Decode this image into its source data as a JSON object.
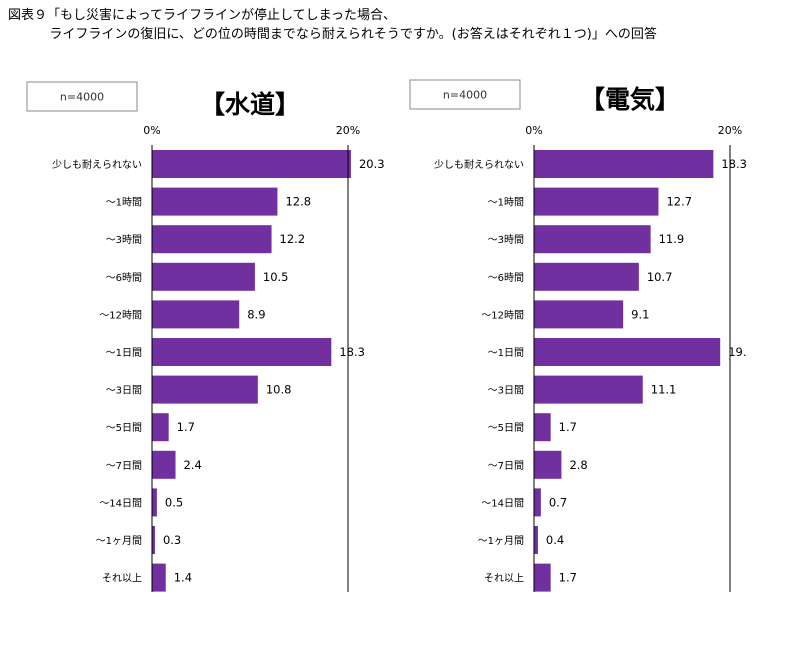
{
  "figure_title_lines": [
    "図表９「もし災害によってライフラインが停止してしまった場合、",
    "          ライフラインの復旧に、どの位の時間までなら耐えられそうですか。(お答えはそれぞれ１つ)」への回答"
  ],
  "colors": {
    "bar": "#7030A0",
    "axis": "#000000",
    "box_border": "#888888"
  },
  "chart_data": [
    {
      "type": "bar",
      "orientation": "horizontal",
      "title": "【水道】",
      "sample_label": "n=4000",
      "xlim": [
        0,
        20
      ],
      "ticks": [
        0,
        20
      ],
      "tick_labels": [
        "0%",
        "20%"
      ],
      "categories": [
        "少しも耐えられない",
        "～1時間",
        "～3時間",
        "～6時間",
        "～12時間",
        "～1日間",
        "～3日間",
        "～5日間",
        "～7日間",
        "～14日間",
        "～1ヶ月間",
        "それ以上"
      ],
      "values": [
        20.3,
        12.8,
        12.2,
        10.5,
        8.9,
        18.3,
        10.8,
        1.7,
        2.4,
        0.5,
        0.3,
        1.4
      ],
      "value_labels": [
        "20.3",
        "12.8",
        "12.2",
        "10.5",
        "8.9",
        "18.3",
        "10.8",
        "1.7",
        "2.4",
        "0.5",
        "0.3",
        "1.4"
      ]
    },
    {
      "type": "bar",
      "orientation": "horizontal",
      "title": "【電気】",
      "sample_label": "n=4000",
      "xlim": [
        0,
        20
      ],
      "ticks": [
        0,
        20
      ],
      "tick_labels": [
        "0%",
        "20%"
      ],
      "categories": [
        "少しも耐えられない",
        "～1時間",
        "～3時間",
        "～6時間",
        "～12時間",
        "～1日間",
        "～3日間",
        "～5日間",
        "～7日間",
        "～14日間",
        "～1ヶ月間",
        "それ以上"
      ],
      "values": [
        18.3,
        12.7,
        11.9,
        10.7,
        9.1,
        19.0,
        11.1,
        1.7,
        2.8,
        0.7,
        0.4,
        1.7
      ],
      "value_labels": [
        "18.3",
        "12.7",
        "11.9",
        "10.7",
        "9.1",
        "19.",
        "11.1",
        "1.7",
        "2.8",
        "0.7",
        "0.4",
        "1.7"
      ]
    }
  ]
}
